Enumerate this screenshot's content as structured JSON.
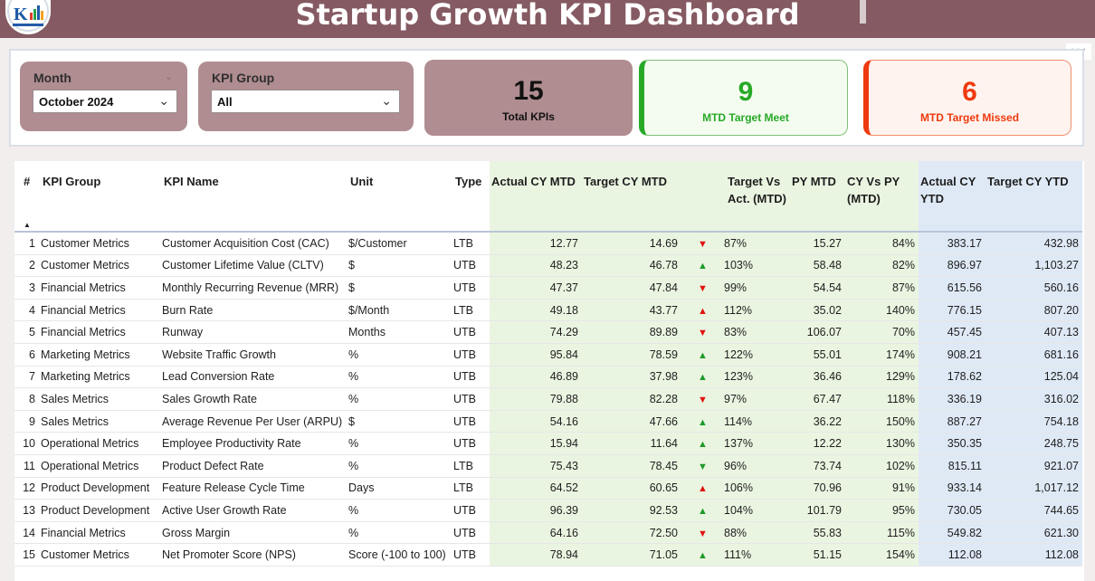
{
  "header": {
    "title": "Startup Growth KPI Dashboard"
  },
  "filters": {
    "month": {
      "label": "Month",
      "value": "October 2024"
    },
    "kpi_group": {
      "label": "KPI Group",
      "value": "All"
    }
  },
  "cards": {
    "total": {
      "value": "15",
      "caption": "Total KPIs"
    },
    "meet": {
      "value": "9",
      "caption": "MTD Target Meet"
    },
    "missed": {
      "value": "6",
      "caption": "MTD Target Missed"
    }
  },
  "more_menu": "···",
  "table": {
    "columns": [
      "#",
      "KPI Group",
      "KPI Name",
      "Unit",
      "Type",
      "Actual CY MTD",
      "Target CY MTD",
      "Target Vs Act. (MTD)",
      "PY MTD",
      "CY Vs PY (MTD)",
      "Actual CY YTD",
      "Target CY YTD"
    ],
    "sort_indicator": "▲",
    "rows": [
      {
        "n": "1",
        "group": "Customer Metrics",
        "name": "Customer Acquisition Cost (CAC)",
        "unit": "$/Customer",
        "type": "LTB",
        "act_mtd": "12.77",
        "tgt_mtd": "14.69",
        "dir": "down",
        "tva": "87%",
        "py_mtd": "15.27",
        "cvp": "84%",
        "act_ytd": "383.17",
        "tgt_ytd": "432.98"
      },
      {
        "n": "2",
        "group": "Customer Metrics",
        "name": "Customer Lifetime Value (CLTV)",
        "unit": "$",
        "type": "UTB",
        "act_mtd": "48.23",
        "tgt_mtd": "46.78",
        "dir": "up",
        "tva": "103%",
        "py_mtd": "58.48",
        "cvp": "82%",
        "act_ytd": "896.97",
        "tgt_ytd": "1,103.27"
      },
      {
        "n": "3",
        "group": "Financial Metrics",
        "name": "Monthly Recurring Revenue (MRR)",
        "unit": "$",
        "type": "UTB",
        "act_mtd": "47.37",
        "tgt_mtd": "47.84",
        "dir": "down",
        "tva": "99%",
        "py_mtd": "54.54",
        "cvp": "87%",
        "act_ytd": "615.56",
        "tgt_ytd": "560.16"
      },
      {
        "n": "4",
        "group": "Financial Metrics",
        "name": "Burn Rate",
        "unit": "$/Month",
        "type": "LTB",
        "act_mtd": "49.18",
        "tgt_mtd": "43.77",
        "dir": "up-red",
        "tva": "112%",
        "py_mtd": "35.02",
        "cvp": "140%",
        "act_ytd": "776.15",
        "tgt_ytd": "807.20"
      },
      {
        "n": "5",
        "group": "Financial Metrics",
        "name": "Runway",
        "unit": "Months",
        "type": "UTB",
        "act_mtd": "74.29",
        "tgt_mtd": "89.89",
        "dir": "down",
        "tva": "83%",
        "py_mtd": "106.07",
        "cvp": "70%",
        "act_ytd": "457.45",
        "tgt_ytd": "407.13"
      },
      {
        "n": "6",
        "group": "Marketing Metrics",
        "name": "Website Traffic Growth",
        "unit": "%",
        "type": "UTB",
        "act_mtd": "95.84",
        "tgt_mtd": "78.59",
        "dir": "up",
        "tva": "122%",
        "py_mtd": "55.01",
        "cvp": "174%",
        "act_ytd": "908.21",
        "tgt_ytd": "681.16"
      },
      {
        "n": "7",
        "group": "Marketing Metrics",
        "name": "Lead Conversion Rate",
        "unit": "%",
        "type": "UTB",
        "act_mtd": "46.89",
        "tgt_mtd": "37.98",
        "dir": "up",
        "tva": "123%",
        "py_mtd": "36.46",
        "cvp": "129%",
        "act_ytd": "178.62",
        "tgt_ytd": "125.04"
      },
      {
        "n": "8",
        "group": "Sales Metrics",
        "name": "Sales Growth Rate",
        "unit": "%",
        "type": "UTB",
        "act_mtd": "79.88",
        "tgt_mtd": "82.28",
        "dir": "down",
        "tva": "97%",
        "py_mtd": "67.47",
        "cvp": "118%",
        "act_ytd": "336.19",
        "tgt_ytd": "316.02"
      },
      {
        "n": "9",
        "group": "Sales Metrics",
        "name": "Average Revenue Per User (ARPU)",
        "unit": "$",
        "type": "UTB",
        "act_mtd": "54.16",
        "tgt_mtd": "47.66",
        "dir": "up",
        "tva": "114%",
        "py_mtd": "36.22",
        "cvp": "150%",
        "act_ytd": "887.27",
        "tgt_ytd": "754.18"
      },
      {
        "n": "10",
        "group": "Operational Metrics",
        "name": "Employee Productivity Rate",
        "unit": "%",
        "type": "UTB",
        "act_mtd": "15.94",
        "tgt_mtd": "11.64",
        "dir": "up",
        "tva": "137%",
        "py_mtd": "12.22",
        "cvp": "130%",
        "act_ytd": "350.35",
        "tgt_ytd": "248.75"
      },
      {
        "n": "11",
        "group": "Operational Metrics",
        "name": "Product Defect Rate",
        "unit": "%",
        "type": "LTB",
        "act_mtd": "75.43",
        "tgt_mtd": "78.45",
        "dir": "down-green",
        "tva": "96%",
        "py_mtd": "73.74",
        "cvp": "102%",
        "act_ytd": "815.11",
        "tgt_ytd": "921.07"
      },
      {
        "n": "12",
        "group": "Product Development",
        "name": "Feature Release Cycle Time",
        "unit": "Days",
        "type": "LTB",
        "act_mtd": "64.52",
        "tgt_mtd": "60.65",
        "dir": "up-red",
        "tva": "106%",
        "py_mtd": "70.96",
        "cvp": "91%",
        "act_ytd": "933.14",
        "tgt_ytd": "1,017.12"
      },
      {
        "n": "13",
        "group": "Product Development",
        "name": "Active User Growth Rate",
        "unit": "%",
        "type": "UTB",
        "act_mtd": "96.39",
        "tgt_mtd": "92.53",
        "dir": "up",
        "tva": "104%",
        "py_mtd": "101.79",
        "cvp": "95%",
        "act_ytd": "730.05",
        "tgt_ytd": "744.65"
      },
      {
        "n": "14",
        "group": "Financial Metrics",
        "name": "Gross Margin",
        "unit": "%",
        "type": "UTB",
        "act_mtd": "64.16",
        "tgt_mtd": "72.50",
        "dir": "down",
        "tva": "88%",
        "py_mtd": "55.83",
        "cvp": "115%",
        "act_ytd": "549.82",
        "tgt_ytd": "621.30"
      },
      {
        "n": "15",
        "group": "Customer Metrics",
        "name": "Net Promoter Score (NPS)",
        "unit": "Score (-100 to 100)",
        "type": "UTB",
        "act_mtd": "78.94",
        "tgt_mtd": "71.05",
        "dir": "up",
        "tva": "111%",
        "py_mtd": "51.15",
        "cvp": "154%",
        "act_ytd": "112.08",
        "tgt_ytd": "112.08"
      }
    ]
  }
}
